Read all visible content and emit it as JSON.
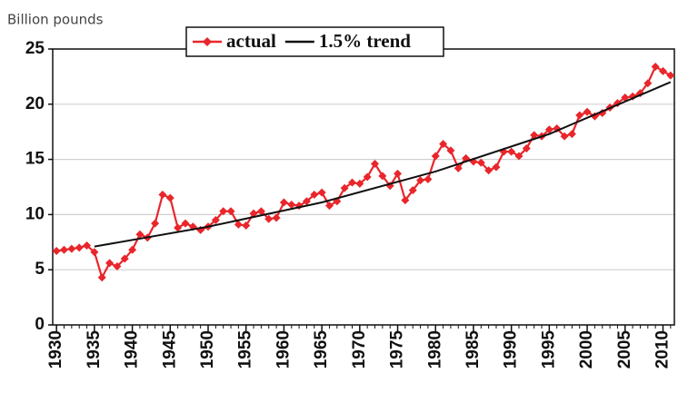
{
  "chart_data": {
    "type": "line",
    "y_label": "Billion pounds",
    "x": [
      1930,
      1931,
      1932,
      1933,
      1934,
      1935,
      1936,
      1937,
      1938,
      1939,
      1940,
      1941,
      1942,
      1943,
      1944,
      1945,
      1946,
      1947,
      1948,
      1949,
      1950,
      1951,
      1952,
      1953,
      1954,
      1955,
      1956,
      1957,
      1958,
      1959,
      1960,
      1961,
      1962,
      1963,
      1964,
      1965,
      1966,
      1967,
      1968,
      1969,
      1970,
      1971,
      1972,
      1973,
      1974,
      1975,
      1976,
      1977,
      1978,
      1979,
      1980,
      1981,
      1982,
      1983,
      1984,
      1985,
      1986,
      1987,
      1988,
      1989,
      1990,
      1991,
      1992,
      1993,
      1994,
      1995,
      1996,
      1997,
      1998,
      1999,
      2000,
      2001,
      2002,
      2003,
      2004,
      2005,
      2006,
      2007,
      2008,
      2009,
      2010,
      2011
    ],
    "series": [
      {
        "name": "actual",
        "color": "#e8262b",
        "marker": "diamond",
        "values": [
          6.7,
          6.8,
          6.9,
          7.0,
          7.2,
          6.6,
          4.3,
          5.6,
          5.3,
          6.0,
          6.8,
          8.2,
          7.9,
          9.2,
          11.8,
          11.5,
          8.8,
          9.2,
          8.9,
          8.6,
          8.9,
          9.5,
          10.3,
          10.3,
          9.1,
          9.0,
          10.1,
          10.3,
          9.6,
          9.7,
          11.1,
          10.9,
          10.8,
          11.2,
          11.8,
          12.0,
          10.8,
          11.2,
          12.4,
          12.9,
          12.8,
          13.4,
          14.6,
          13.5,
          12.6,
          13.7,
          11.3,
          12.2,
          13.1,
          13.2,
          15.3,
          16.4,
          15.8,
          14.2,
          15.1,
          14.8,
          14.7,
          14.0,
          14.3,
          15.7,
          15.7,
          15.3,
          16.0,
          17.2,
          17.1,
          17.7,
          17.8,
          17.1,
          17.3,
          19.0,
          19.3,
          18.9,
          19.2,
          19.7,
          20.1,
          20.6,
          20.7,
          21.0,
          21.9,
          23.4,
          23.0,
          22.6
        ]
      },
      {
        "name": "1.5% trend",
        "color": "#111111",
        "marker": "none",
        "x": [
          1935,
          1950,
          1965,
          1980,
          1995,
          2011
        ],
        "values": [
          7.1,
          8.9,
          11.1,
          13.9,
          17.3,
          22.0
        ]
      }
    ],
    "xlim": [
      1929.5,
      2011.5
    ],
    "xticks": [
      1930,
      1935,
      1940,
      1945,
      1950,
      1955,
      1960,
      1965,
      1970,
      1975,
      1980,
      1985,
      1990,
      1995,
      2000,
      2005,
      2010
    ],
    "ylim": [
      0,
      25
    ],
    "yticks": [
      0,
      5,
      10,
      15,
      20,
      25
    ],
    "grid": true,
    "legend": "top"
  }
}
